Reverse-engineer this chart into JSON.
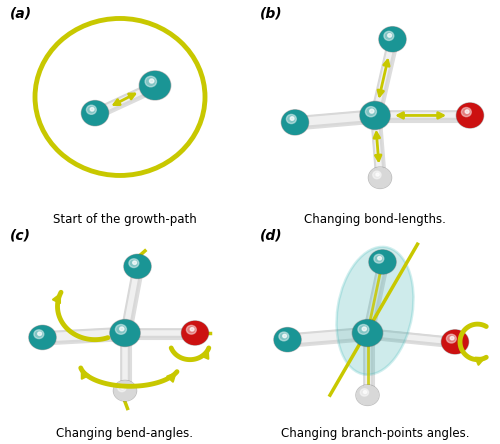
{
  "figure_size": [
    5.0,
    4.44
  ],
  "dpi": 100,
  "background_color": "#ffffff",
  "panel_labels": [
    "(a)",
    "(b)",
    "(c)",
    "(d)"
  ],
  "captions": [
    "Start of the growth-path",
    "Changing bond-lengths.",
    "Changing bend-angles.",
    "Changing branch-points angles."
  ],
  "teal_color": "#1a9595",
  "red_color": "#cc1111",
  "white_atom_color": "#d8d8d8",
  "bond_color": "#c0c0c0",
  "yellow_color": "#c8c800",
  "label_fontsize": 10,
  "caption_fontsize": 8.5
}
